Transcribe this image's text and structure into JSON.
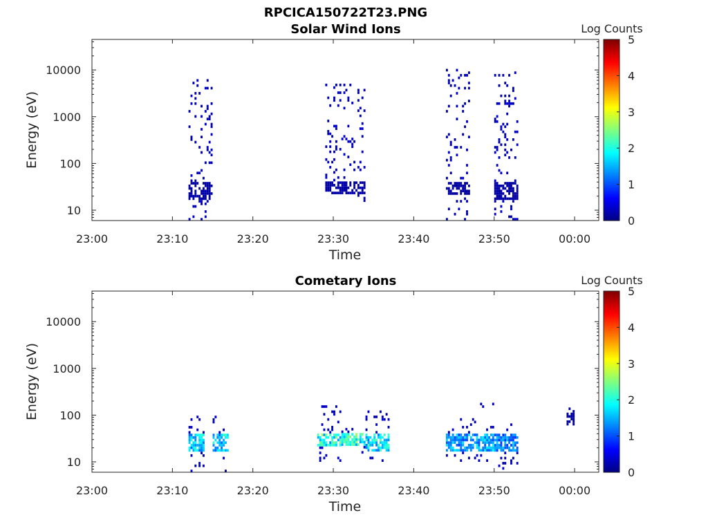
{
  "figure": {
    "title": "RPCICA150722T23.PNG"
  },
  "chart_data": [
    {
      "type": "heatmap",
      "title": "Solar Wind Ions",
      "xlabel": "Time",
      "ylabel": "Energy (eV)",
      "y_scale": "log",
      "xlim": [
        "23:00",
        "00:03"
      ],
      "ylim": [
        6,
        45000
      ],
      "x_ticks": [
        "23:00",
        "23:10",
        "23:20",
        "23:30",
        "23:40",
        "23:50",
        "00:00"
      ],
      "y_ticks": [
        "10",
        "100",
        "1000",
        "10000"
      ],
      "colorbar": {
        "label": "Log Counts",
        "range": [
          0,
          5
        ],
        "ticks": [
          "0",
          "1",
          "2",
          "3",
          "4",
          "5"
        ],
        "colormap": "jet"
      },
      "grid": false,
      "bursts": [
        {
          "time": "23:12-23:15",
          "energy_range_eV": [
            6,
            7000
          ],
          "core_energy_eV": [
            15,
            40
          ],
          "log_counts": 0.2
        },
        {
          "time": "23:29-23:34",
          "energy_range_eV": [
            15,
            5000
          ],
          "core_energy_eV": [
            20,
            40
          ],
          "log_counts": 0.2
        },
        {
          "time": "23:44-23:47",
          "energy_range_eV": [
            6,
            10000
          ],
          "core_energy_eV": [
            20,
            40
          ],
          "log_counts": 0.2
        },
        {
          "time": "23:50-23:53",
          "energy_range_eV": [
            6,
            9000
          ],
          "core_energy_eV": [
            15,
            40
          ],
          "log_counts": 0.2
        }
      ]
    },
    {
      "type": "heatmap",
      "title": "Cometary Ions",
      "xlabel": "Time",
      "ylabel": "Energy (eV)",
      "y_scale": "log",
      "xlim": [
        "23:00",
        "00:03"
      ],
      "ylim": [
        6,
        45000
      ],
      "x_ticks": [
        "23:00",
        "23:10",
        "23:20",
        "23:30",
        "23:40",
        "23:50",
        "00:00"
      ],
      "y_ticks": [
        "10",
        "100",
        "1000",
        "10000"
      ],
      "colorbar": {
        "label": "Log Counts",
        "range": [
          0,
          5
        ],
        "ticks": [
          "0",
          "1",
          "2",
          "3",
          "4",
          "5"
        ],
        "colormap": "jet"
      },
      "grid": false,
      "bursts": [
        {
          "time": "23:12-23:14",
          "energy_range_eV": [
            6,
            110
          ],
          "core_energy_eV": [
            15,
            40
          ],
          "log_counts": 1.8
        },
        {
          "time": "23:15-23:17",
          "energy_range_eV": [
            6,
            90
          ],
          "core_energy_eV": [
            15,
            40
          ],
          "log_counts": 1.8
        },
        {
          "time": "23:28-23:31",
          "energy_range_eV": [
            10,
            160
          ],
          "core_energy_eV": [
            20,
            40
          ],
          "log_counts": 2.2
        },
        {
          "time": "23:31-23:34",
          "energy_range_eV": [
            15,
            60
          ],
          "core_energy_eV": [
            20,
            40
          ],
          "log_counts": 2.2
        },
        {
          "time": "23:34-23:37",
          "energy_range_eV": [
            10,
            120
          ],
          "core_energy_eV": [
            15,
            40
          ],
          "log_counts": 2.0
        },
        {
          "time": "23:44-23:47",
          "energy_range_eV": [
            10,
            80
          ],
          "core_energy_eV": [
            15,
            40
          ],
          "log_counts": 1.5
        },
        {
          "time": "23:47-23:50",
          "energy_range_eV": [
            10,
            220
          ],
          "core_energy_eV": [
            15,
            40
          ],
          "log_counts": 1.6
        },
        {
          "time": "23:50-23:53",
          "energy_range_eV": [
            6,
            60
          ],
          "core_energy_eV": [
            15,
            40
          ],
          "log_counts": 1.4
        },
        {
          "time": "23:59-00:00",
          "energy_range_eV": [
            60,
            140
          ],
          "core_energy_eV": [
            60,
            140
          ],
          "log_counts": 0.2
        }
      ]
    }
  ]
}
